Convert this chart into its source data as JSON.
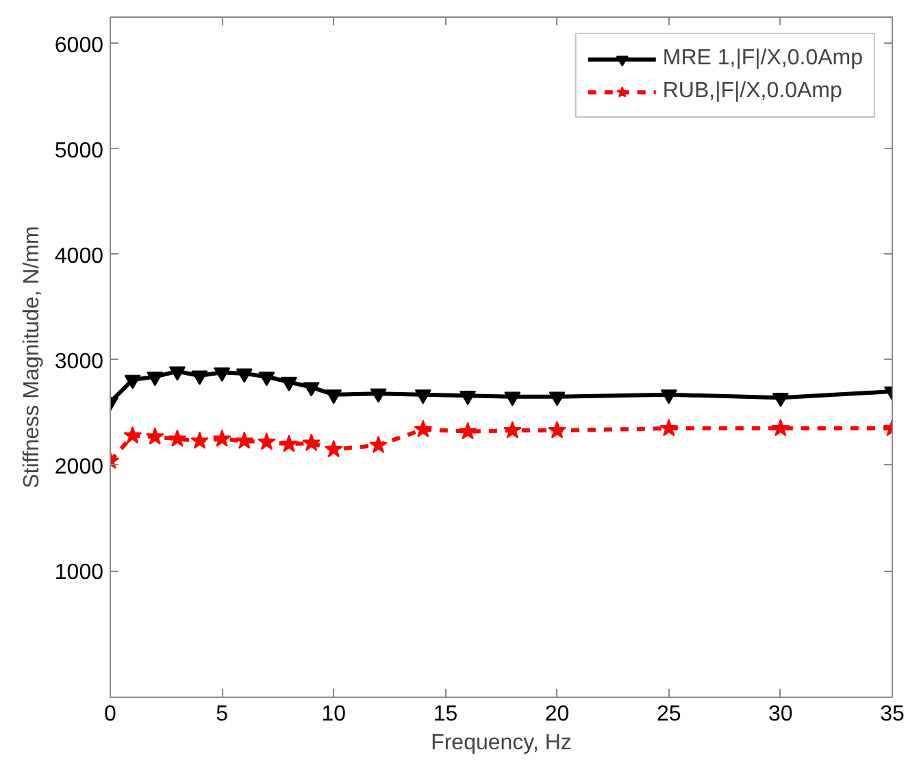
{
  "chart_data": {
    "type": "line",
    "xlabel": "Frequency, Hz",
    "ylabel": "Stiffness Magnitude, N/mm",
    "xlim": [
      0,
      35
    ],
    "ylim": [
      -200,
      6250
    ],
    "xticks": [
      0,
      5,
      10,
      15,
      20,
      25,
      30,
      35
    ],
    "yticks": [
      1000,
      2000,
      3000,
      4000,
      5000,
      6000
    ],
    "grid": false,
    "legend": "top right",
    "x": [
      0,
      1,
      2,
      3,
      4,
      5,
      6,
      7,
      8,
      9,
      10,
      12,
      14,
      16,
      18,
      20,
      25,
      30,
      35
    ],
    "series": [
      {
        "name": "MRE 1,|F|/X,0.0Amp",
        "color": "#000000",
        "marker": "triangle",
        "line_style": "solid",
        "values": [
          2600,
          2810,
          2840,
          2890,
          2850,
          2880,
          2870,
          2840,
          2790,
          2740,
          2670,
          2680,
          2670,
          2660,
          2650,
          2650,
          2670,
          2640,
          2700
        ]
      },
      {
        "name": "RUB,|F|/X,0.0Amp",
        "color": "#ff0000",
        "marker": "star",
        "line_style": "dashed",
        "values": [
          2040,
          2280,
          2270,
          2250,
          2230,
          2250,
          2230,
          2220,
          2200,
          2210,
          2150,
          2190,
          2340,
          2320,
          2330,
          2330,
          2350,
          2350,
          2350
        ]
      }
    ]
  }
}
